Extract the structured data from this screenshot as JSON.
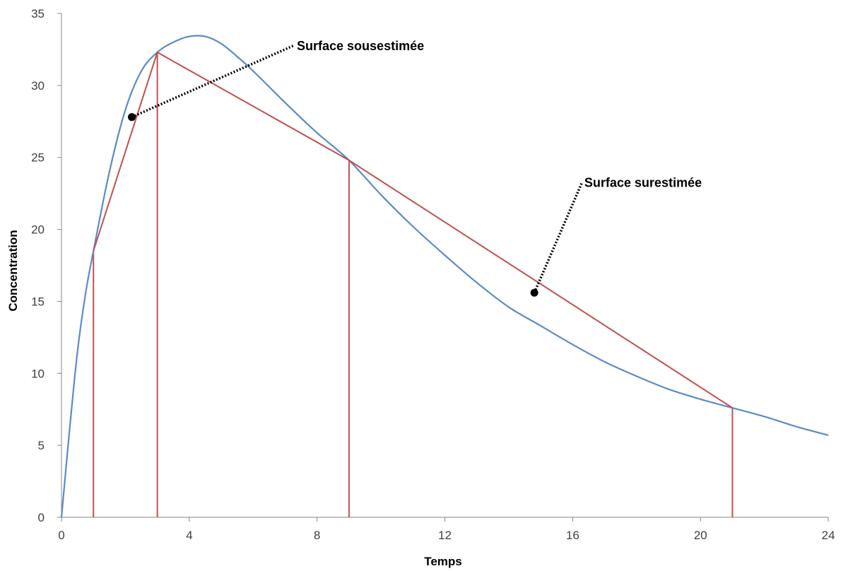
{
  "chart_data": {
    "type": "line",
    "title": "",
    "xlabel": "Temps",
    "ylabel": "Concentration",
    "xlim": [
      0,
      24
    ],
    "ylim": [
      0,
      35
    ],
    "x_ticks": [
      "0",
      "4",
      "8",
      "12",
      "16",
      "20",
      "24"
    ],
    "y_ticks": [
      "0",
      "5",
      "10",
      "15",
      "20",
      "25",
      "30",
      "35"
    ],
    "grid": false,
    "legend": "none",
    "series": [
      {
        "color": "#5B8BC8",
        "points": [
          [
            0,
            0
          ],
          [
            0.25,
            6
          ],
          [
            0.5,
            11.5
          ],
          [
            0.75,
            15.5
          ],
          [
            1,
            18.5
          ],
          [
            1.5,
            24
          ],
          [
            2,
            28.3
          ],
          [
            2.5,
            31
          ],
          [
            3,
            32.3
          ],
          [
            3.5,
            33
          ],
          [
            4,
            33.4
          ],
          [
            4.5,
            33.4
          ],
          [
            5,
            32.9
          ],
          [
            5.5,
            32
          ],
          [
            6,
            31
          ],
          [
            7,
            28.8
          ],
          [
            8,
            26.7
          ],
          [
            9,
            24.8
          ],
          [
            10,
            22.4
          ],
          [
            11,
            20.2
          ],
          [
            12,
            18.2
          ],
          [
            13,
            16.3
          ],
          [
            14,
            14.6
          ],
          [
            15,
            13.3
          ],
          [
            16,
            12
          ],
          [
            17,
            10.8
          ],
          [
            18,
            9.8
          ],
          [
            19,
            8.9
          ],
          [
            20,
            8.2
          ],
          [
            21,
            7.6
          ],
          [
            22,
            7
          ],
          [
            23,
            6.3
          ],
          [
            24,
            5.7
          ]
        ]
      },
      {
        "color": "#C0504D",
        "points": [
          [
            1,
            18.5
          ],
          [
            3,
            32.3
          ],
          [
            9,
            24.8
          ],
          [
            21,
            7.6
          ]
        ]
      }
    ],
    "verticals": [
      {
        "x": 1,
        "y": 18.5
      },
      {
        "x": 3,
        "y": 32.3
      },
      {
        "x": 9,
        "y": 24.8
      },
      {
        "x": 21,
        "y": 7.6
      }
    ],
    "annotations": [
      {
        "label": "Surface sousestimée",
        "point": [
          2.2,
          27.8
        ],
        "text_at": [
          7.3,
          32.8
        ]
      },
      {
        "label": "Surface surestimée",
        "point": [
          14.8,
          15.6
        ],
        "text_at": [
          16.3,
          23.3
        ]
      }
    ]
  }
}
